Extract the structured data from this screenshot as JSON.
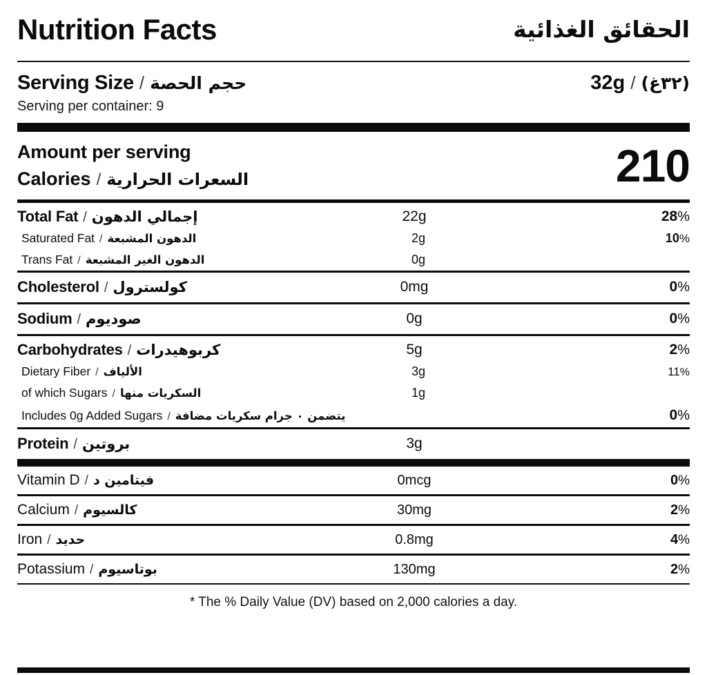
{
  "meta": {
    "percent_sign": "%",
    "separator": "/"
  },
  "colors": {
    "ink": "#0b0b0b",
    "background": "#ffffff"
  },
  "header": {
    "title_en": "Nutrition Facts",
    "title_ar": "الحقائق الغذائية"
  },
  "serving": {
    "label_en": "Serving Size",
    "label_ar": "حجم الحصة",
    "value_en": "32g",
    "value_ar": "(٣٢غ)",
    "per_container": "Serving per container: 9"
  },
  "calories": {
    "amount_per_serving": "Amount per serving",
    "label_en": "Calories",
    "label_ar": "السعرات الحرارية",
    "value": "210"
  },
  "nutrients": [
    {
      "en": "Total Fat",
      "ar": "إجمالي الدهون",
      "amount": "22g",
      "dv": "28",
      "dv_style": "bold-lg",
      "style": "maintight",
      "divider": ""
    },
    {
      "en": "Saturated Fat",
      "ar": "الدهون المشبعة",
      "amount": "2g",
      "dv": "10",
      "dv_style": "bold-sm",
      "style": "sub",
      "divider": ""
    },
    {
      "en": "Trans Fat",
      "ar": "الدهون الغير المشبعة",
      "amount": "0g",
      "dv": "",
      "dv_style": "",
      "style": "sub",
      "divider": "3"
    },
    {
      "en": "Cholesterol",
      "ar": "كولسترول",
      "amount": "0mg",
      "dv": "0",
      "dv_style": "bold-lg",
      "style": "main",
      "divider": "3"
    },
    {
      "en": "Sodium",
      "ar": "صوديوم",
      "amount": "0g",
      "dv": "0",
      "dv_style": "bold-lg",
      "style": "main",
      "divider": "3"
    },
    {
      "en": "Carbohydrates",
      "ar": "كربوهيدرات",
      "amount": "5g",
      "dv": "2",
      "dv_style": "bold-lg",
      "style": "maintight",
      "divider": ""
    },
    {
      "en": "Dietary Fiber",
      "ar": "الألياف",
      "amount": "3g",
      "dv": "11",
      "dv_style": "reg-sm",
      "style": "sub",
      "divider": ""
    },
    {
      "en": "of which Sugars",
      "ar": "السكريات منها",
      "amount": "1g",
      "dv": "",
      "dv_style": "",
      "style": "sub",
      "divider": ""
    },
    {
      "en": "Includes 0g Added Sugars",
      "ar": "يتضمن ٠ جرام سكريات مضافة",
      "amount": "",
      "dv": "0",
      "dv_style": "bold-lg",
      "style": "sub",
      "divider": "3"
    },
    {
      "en": "Protein",
      "ar": "بروتين",
      "amount": "3g",
      "dv": "",
      "dv_style": "",
      "style": "main",
      "divider": "11"
    },
    {
      "en": "Vitamin D",
      "ar": "فيتامين د",
      "amount": "0mcg",
      "dv": "0",
      "dv_style": "bold-md",
      "style": "vit",
      "divider": "3"
    },
    {
      "en": "Calcium",
      "ar": "كالسيوم",
      "amount": "30mg",
      "dv": "2",
      "dv_style": "bold-md",
      "style": "vit",
      "divider": "3"
    },
    {
      "en": "Iron",
      "ar": "حديد",
      "amount": "0.8mg",
      "dv": "4",
      "dv_style": "bold-md",
      "style": "vit",
      "divider": "3"
    },
    {
      "en": "Potassium",
      "ar": "بوتاسيوم",
      "amount": "130mg",
      "dv": "2",
      "dv_style": "bold-md",
      "style": "vit",
      "divider": "2"
    }
  ],
  "footer": {
    "note": "* The % Daily Value (DV) based on 2,000 calories a day."
  }
}
